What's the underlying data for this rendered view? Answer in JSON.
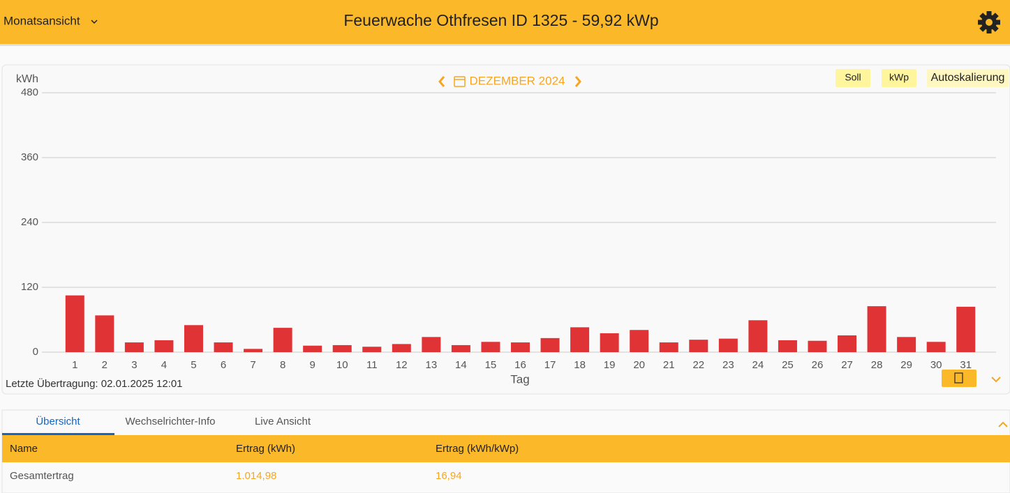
{
  "header": {
    "view": "Monatsansicht",
    "title": "Feuerwache Othfresen ID 1325 - 59,92 kWp"
  },
  "buttons": [
    "Soll",
    "kWp",
    "Autoskalierung"
  ],
  "chart_data": {
    "type": "bar",
    "title": "DEZEMBER 2024",
    "y_label": "kWh",
    "x_label": "Tag",
    "categories": [
      "1",
      "2",
      "3",
      "4",
      "5",
      "6",
      "7",
      "8",
      "9",
      "10",
      "11",
      "12",
      "13",
      "14",
      "15",
      "16",
      "17",
      "18",
      "19",
      "20",
      "21",
      "22",
      "23",
      "24",
      "25",
      "26",
      "27",
      "28",
      "29",
      "30",
      "31"
    ],
    "values": [
      105,
      68,
      18,
      22,
      50,
      18,
      6,
      45,
      12,
      13,
      10,
      15,
      28,
      13,
      19,
      18,
      26,
      46,
      35,
      41,
      18,
      23,
      25,
      59,
      22,
      21,
      31,
      85,
      28,
      19,
      84
    ],
    "color": "#e03335",
    "ylim": [
      0,
      480
    ],
    "yticks": [
      0,
      120,
      240,
      360,
      480
    ],
    "grid": true
  },
  "footer": "Letzte Übertragung: 02.01.2025 12:01",
  "tabs": [
    "Übersicht",
    "Wechselrichter-Info",
    "Live Ansicht"
  ],
  "table": {
    "columns": [
      "Name",
      "Ertrag (kWh)",
      "Ertrag (kWh/kWp)"
    ],
    "rows": [
      [
        "Gesamtertrag",
        "1.014,98",
        "16,94"
      ]
    ]
  }
}
